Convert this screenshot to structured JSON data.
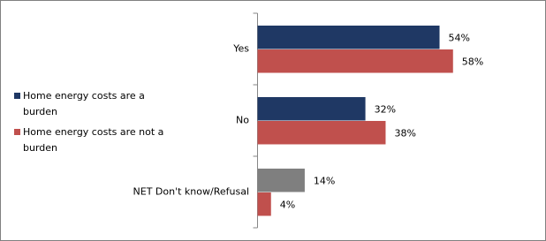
{
  "chart_data": {
    "type": "bar",
    "orientation": "horizontal",
    "categories": [
      "Yes",
      "No",
      "NET Don't know/Refusal"
    ],
    "series": [
      {
        "name": "Home energy costs are a burden",
        "color": "#1f3864",
        "colors": [
          "#1f3864",
          "#1f3864",
          "#7f7f7f"
        ],
        "values": [
          54,
          32,
          14
        ],
        "value_labels": [
          "54%",
          "32%",
          "14%"
        ]
      },
      {
        "name": "Home energy costs are not a burden",
        "color": "#c0504d",
        "colors": [
          "#c0504d",
          "#c0504d",
          "#c0504d"
        ],
        "values": [
          58,
          38,
          4
        ],
        "value_labels": [
          "58%",
          "38%",
          "4%"
        ]
      }
    ],
    "legend": "left"
  }
}
